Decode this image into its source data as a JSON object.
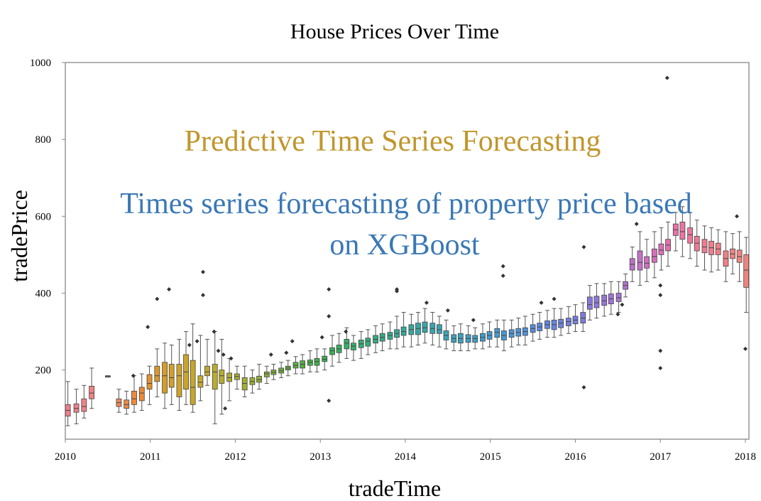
{
  "colors": {
    "overlay_title": "#c0962c",
    "overlay_subtitle": "#3a78b5",
    "frame": "#888888",
    "whisker": "#555555",
    "outlier": "#333333",
    "box_stroke": "#444444"
  },
  "chart_data": {
    "type": "box",
    "title": "House Prices Over Time",
    "xlabel": "tradeTime",
    "ylabel": "tradePrice",
    "xlim": [
      "2010-01",
      "2018-01"
    ],
    "ylim": [
      20,
      1000
    ],
    "yticks": [
      200,
      400,
      600,
      800,
      1000
    ],
    "xticks": [
      "2010",
      "2011",
      "2012",
      "2013",
      "2014",
      "2015",
      "2016",
      "2017",
      "2018"
    ],
    "grid": false,
    "overlay": {
      "headline": "Predictive Time Series Forecasting",
      "subline_1": "Times series forecasting of property price based",
      "subline_2": "on XGBoost"
    },
    "boxes": [
      {
        "t": 2010.03,
        "q1": 80,
        "med": 95,
        "q3": 110,
        "lo": 55,
        "hi": 170,
        "color": "#ee7f8a"
      },
      {
        "t": 2010.13,
        "q1": 90,
        "med": 100,
        "q3": 112,
        "lo": 60,
        "hi": 150,
        "color": "#ee7f8a"
      },
      {
        "t": 2010.22,
        "q1": 92,
        "med": 105,
        "q3": 125,
        "lo": 75,
        "hi": 160,
        "color": "#ee8288"
      },
      {
        "t": 2010.31,
        "q1": 125,
        "med": 140,
        "q3": 158,
        "lo": 100,
        "hi": 205,
        "color": "#ee8484"
      },
      {
        "t": 2010.5,
        "q1": 182,
        "med": 183,
        "q3": 185,
        "lo": 182,
        "hi": 185,
        "color": "#e98a6f"
      },
      {
        "t": 2010.63,
        "q1": 105,
        "med": 115,
        "q3": 125,
        "lo": 90,
        "hi": 150,
        "color": "#e98a5a"
      },
      {
        "t": 2010.72,
        "q1": 100,
        "med": 110,
        "q3": 122,
        "lo": 85,
        "hi": 145,
        "color": "#ec8a45"
      },
      {
        "t": 2010.81,
        "q1": 110,
        "med": 125,
        "q3": 145,
        "lo": 90,
        "hi": 185,
        "color": "#ec8a3c"
      },
      {
        "t": 2010.9,
        "q1": 120,
        "med": 140,
        "q3": 155,
        "lo": 95,
        "hi": 190,
        "color": "#ec8a38"
      },
      {
        "t": 2010.99,
        "q1": 150,
        "med": 165,
        "q3": 188,
        "lo": 110,
        "hi": 210,
        "color": "#e2922f"
      },
      {
        "t": 2011.08,
        "q1": 170,
        "med": 185,
        "q3": 210,
        "lo": 130,
        "hi": 255,
        "color": "#d99a2a"
      },
      {
        "t": 2011.17,
        "q1": 140,
        "med": 185,
        "q3": 220,
        "lo": 100,
        "hi": 270,
        "color": "#d69c2a"
      },
      {
        "t": 2011.25,
        "q1": 155,
        "med": 180,
        "q3": 215,
        "lo": 110,
        "hi": 265,
        "color": "#d19f2a"
      },
      {
        "t": 2011.34,
        "q1": 130,
        "med": 185,
        "q3": 215,
        "lo": 95,
        "hi": 280,
        "color": "#cfa22a"
      },
      {
        "t": 2011.42,
        "q1": 150,
        "med": 195,
        "q3": 240,
        "lo": 110,
        "hi": 300,
        "color": "#caa52a"
      },
      {
        "t": 2011.5,
        "q1": 110,
        "med": 155,
        "q3": 225,
        "lo": 90,
        "hi": 320,
        "color": "#c6a72b"
      },
      {
        "t": 2011.59,
        "q1": 155,
        "med": 168,
        "q3": 185,
        "lo": 120,
        "hi": 290,
        "color": "#c3a92c"
      },
      {
        "t": 2011.67,
        "q1": 185,
        "med": 195,
        "q3": 210,
        "lo": 160,
        "hi": 280,
        "color": "#bfaa2e"
      },
      {
        "t": 2011.76,
        "q1": 150,
        "med": 195,
        "q3": 215,
        "lo": 60,
        "hi": 300,
        "color": "#baad2f"
      },
      {
        "t": 2011.84,
        "q1": 165,
        "med": 185,
        "q3": 200,
        "lo": 85,
        "hi": 280,
        "color": "#b6ad30"
      },
      {
        "t": 2011.93,
        "q1": 170,
        "med": 180,
        "q3": 192,
        "lo": 120,
        "hi": 230,
        "color": "#b0ae31"
      },
      {
        "t": 2012.02,
        "q1": 175,
        "med": 183,
        "q3": 190,
        "lo": 150,
        "hi": 210,
        "color": "#a9ae33"
      },
      {
        "t": 2012.11,
        "q1": 148,
        "med": 165,
        "q3": 180,
        "lo": 130,
        "hi": 210,
        "color": "#a2ae34"
      },
      {
        "t": 2012.2,
        "q1": 162,
        "med": 170,
        "q3": 180,
        "lo": 140,
        "hi": 200,
        "color": "#9aae36"
      },
      {
        "t": 2012.28,
        "q1": 168,
        "med": 175,
        "q3": 184,
        "lo": 150,
        "hi": 215,
        "color": "#92ae38"
      },
      {
        "t": 2012.37,
        "q1": 182,
        "med": 190,
        "q3": 195,
        "lo": 165,
        "hi": 210,
        "color": "#88ae3a"
      },
      {
        "t": 2012.45,
        "q1": 188,
        "med": 194,
        "q3": 200,
        "lo": 175,
        "hi": 215,
        "color": "#7daf3c"
      },
      {
        "t": 2012.54,
        "q1": 192,
        "med": 198,
        "q3": 205,
        "lo": 180,
        "hi": 220,
        "color": "#72af3e"
      },
      {
        "t": 2012.62,
        "q1": 200,
        "med": 205,
        "q3": 210,
        "lo": 185,
        "hi": 225,
        "color": "#67b040"
      },
      {
        "t": 2012.71,
        "q1": 205,
        "med": 212,
        "q3": 220,
        "lo": 190,
        "hi": 235,
        "color": "#5cb042"
      },
      {
        "t": 2012.79,
        "q1": 205,
        "med": 215,
        "q3": 224,
        "lo": 190,
        "hi": 240,
        "color": "#52b045"
      },
      {
        "t": 2012.88,
        "q1": 212,
        "med": 220,
        "q3": 226,
        "lo": 195,
        "hi": 250,
        "color": "#49b048"
      },
      {
        "t": 2012.96,
        "q1": 212,
        "med": 222,
        "q3": 230,
        "lo": 195,
        "hi": 255,
        "color": "#42b04c"
      },
      {
        "t": 2013.05,
        "q1": 222,
        "med": 228,
        "q3": 236,
        "lo": 200,
        "hi": 255,
        "color": "#3db052"
      },
      {
        "t": 2013.14,
        "q1": 240,
        "med": 250,
        "q3": 258,
        "lo": 210,
        "hi": 290,
        "color": "#39b058"
      },
      {
        "t": 2013.22,
        "q1": 245,
        "med": 255,
        "q3": 265,
        "lo": 220,
        "hi": 295,
        "color": "#37b05f"
      },
      {
        "t": 2013.31,
        "q1": 255,
        "med": 270,
        "q3": 280,
        "lo": 230,
        "hi": 310,
        "color": "#36af66"
      },
      {
        "t": 2013.39,
        "q1": 252,
        "med": 262,
        "q3": 270,
        "lo": 225,
        "hi": 290,
        "color": "#35af6d"
      },
      {
        "t": 2013.48,
        "q1": 258,
        "med": 268,
        "q3": 278,
        "lo": 230,
        "hi": 300,
        "color": "#34ae74"
      },
      {
        "t": 2013.56,
        "q1": 262,
        "med": 275,
        "q3": 283,
        "lo": 240,
        "hi": 305,
        "color": "#34ad7b"
      },
      {
        "t": 2013.65,
        "q1": 270,
        "med": 280,
        "q3": 290,
        "lo": 245,
        "hi": 315,
        "color": "#34ac82"
      },
      {
        "t": 2013.73,
        "q1": 275,
        "med": 285,
        "q3": 295,
        "lo": 250,
        "hi": 320,
        "color": "#35ab88"
      },
      {
        "t": 2013.82,
        "q1": 280,
        "med": 290,
        "q3": 298,
        "lo": 255,
        "hi": 325,
        "color": "#35aa8e"
      },
      {
        "t": 2013.9,
        "q1": 285,
        "med": 295,
        "q3": 305,
        "lo": 255,
        "hi": 340,
        "color": "#36a994"
      },
      {
        "t": 2013.98,
        "q1": 290,
        "med": 300,
        "q3": 312,
        "lo": 260,
        "hi": 350,
        "color": "#37a89a"
      },
      {
        "t": 2014.07,
        "q1": 292,
        "med": 305,
        "q3": 318,
        "lo": 260,
        "hi": 345,
        "color": "#38a79f"
      },
      {
        "t": 2014.15,
        "q1": 292,
        "med": 308,
        "q3": 322,
        "lo": 265,
        "hi": 350,
        "color": "#39a6a4"
      },
      {
        "t": 2014.23,
        "q1": 298,
        "med": 310,
        "q3": 325,
        "lo": 270,
        "hi": 360,
        "color": "#3aa5a9"
      },
      {
        "t": 2014.32,
        "q1": 295,
        "med": 308,
        "q3": 322,
        "lo": 265,
        "hi": 350,
        "color": "#3ba4ae"
      },
      {
        "t": 2014.4,
        "q1": 295,
        "med": 305,
        "q3": 318,
        "lo": 260,
        "hi": 340,
        "color": "#3ca3b2"
      },
      {
        "t": 2014.48,
        "q1": 278,
        "med": 290,
        "q3": 302,
        "lo": 255,
        "hi": 330,
        "color": "#3da2b6"
      },
      {
        "t": 2014.57,
        "q1": 272,
        "med": 282,
        "q3": 292,
        "lo": 250,
        "hi": 315,
        "color": "#3ea1ba"
      },
      {
        "t": 2014.65,
        "q1": 270,
        "med": 282,
        "q3": 295,
        "lo": 250,
        "hi": 320,
        "color": "#3fa0be"
      },
      {
        "t": 2014.74,
        "q1": 272,
        "med": 282,
        "q3": 292,
        "lo": 250,
        "hi": 315,
        "color": "#409fc2"
      },
      {
        "t": 2014.82,
        "q1": 272,
        "med": 282,
        "q3": 290,
        "lo": 255,
        "hi": 310,
        "color": "#419ec6"
      },
      {
        "t": 2014.91,
        "q1": 275,
        "med": 285,
        "q3": 295,
        "lo": 255,
        "hi": 320,
        "color": "#429dca"
      },
      {
        "t": 2014.99,
        "q1": 280,
        "med": 290,
        "q3": 300,
        "lo": 260,
        "hi": 325,
        "color": "#449bcd"
      },
      {
        "t": 2015.08,
        "q1": 285,
        "med": 298,
        "q3": 308,
        "lo": 260,
        "hi": 330,
        "color": "#4699d0"
      },
      {
        "t": 2015.16,
        "q1": 278,
        "med": 290,
        "q3": 302,
        "lo": 250,
        "hi": 330,
        "color": "#4897d3"
      },
      {
        "t": 2015.25,
        "q1": 285,
        "med": 295,
        "q3": 305,
        "lo": 260,
        "hi": 330,
        "color": "#4b95d6"
      },
      {
        "t": 2015.33,
        "q1": 288,
        "med": 298,
        "q3": 308,
        "lo": 265,
        "hi": 335,
        "color": "#4e93d8"
      },
      {
        "t": 2015.41,
        "q1": 290,
        "med": 300,
        "q3": 310,
        "lo": 265,
        "hi": 340,
        "color": "#5291da"
      },
      {
        "t": 2015.5,
        "q1": 298,
        "med": 308,
        "q3": 318,
        "lo": 275,
        "hi": 345,
        "color": "#568edc"
      },
      {
        "t": 2015.58,
        "q1": 302,
        "med": 312,
        "q3": 322,
        "lo": 280,
        "hi": 350,
        "color": "#5b8bdd"
      },
      {
        "t": 2015.67,
        "q1": 308,
        "med": 318,
        "q3": 328,
        "lo": 285,
        "hi": 355,
        "color": "#6088de"
      },
      {
        "t": 2015.75,
        "q1": 305,
        "med": 318,
        "q3": 330,
        "lo": 285,
        "hi": 360,
        "color": "#6685de"
      },
      {
        "t": 2015.83,
        "q1": 310,
        "med": 322,
        "q3": 332,
        "lo": 290,
        "hi": 360,
        "color": "#6c82de"
      },
      {
        "t": 2015.92,
        "q1": 315,
        "med": 326,
        "q3": 335,
        "lo": 295,
        "hi": 365,
        "color": "#737fde"
      },
      {
        "t": 2016.0,
        "q1": 320,
        "med": 330,
        "q3": 340,
        "lo": 300,
        "hi": 370,
        "color": "#797cdd"
      },
      {
        "t": 2016.09,
        "q1": 322,
        "med": 335,
        "q3": 350,
        "lo": 300,
        "hi": 375,
        "color": "#807adc"
      },
      {
        "t": 2016.17,
        "q1": 358,
        "med": 370,
        "q3": 390,
        "lo": 330,
        "hi": 420,
        "color": "#8878db"
      },
      {
        "t": 2016.25,
        "q1": 362,
        "med": 375,
        "q3": 392,
        "lo": 335,
        "hi": 425,
        "color": "#9076d9"
      },
      {
        "t": 2016.34,
        "q1": 368,
        "med": 380,
        "q3": 395,
        "lo": 340,
        "hi": 425,
        "color": "#9875d7"
      },
      {
        "t": 2016.42,
        "q1": 372,
        "med": 385,
        "q3": 398,
        "lo": 345,
        "hi": 430,
        "color": "#a074d4"
      },
      {
        "t": 2016.51,
        "q1": 378,
        "med": 388,
        "q3": 400,
        "lo": 350,
        "hi": 430,
        "color": "#a873d1"
      },
      {
        "t": 2016.59,
        "q1": 410,
        "med": 420,
        "q3": 430,
        "lo": 390,
        "hi": 450,
        "color": "#b172cd"
      },
      {
        "t": 2016.67,
        "q1": 460,
        "med": 475,
        "q3": 490,
        "lo": 430,
        "hi": 520,
        "color": "#ba71c9"
      },
      {
        "t": 2016.76,
        "q1": 460,
        "med": 480,
        "q3": 510,
        "lo": 420,
        "hi": 560,
        "color": "#c370c4"
      },
      {
        "t": 2016.84,
        "q1": 465,
        "med": 478,
        "q3": 495,
        "lo": 430,
        "hi": 540,
        "color": "#cc70bf"
      },
      {
        "t": 2016.93,
        "q1": 480,
        "med": 495,
        "q3": 515,
        "lo": 440,
        "hi": 560,
        "color": "#d470ba"
      },
      {
        "t": 2017.01,
        "q1": 500,
        "med": 512,
        "q3": 528,
        "lo": 460,
        "hi": 570,
        "color": "#dc70b4"
      },
      {
        "t": 2017.09,
        "q1": 510,
        "med": 525,
        "q3": 540,
        "lo": 470,
        "hi": 585,
        "color": "#e271ae"
      },
      {
        "t": 2017.18,
        "q1": 550,
        "med": 565,
        "q3": 580,
        "lo": 510,
        "hi": 610,
        "color": "#e773a8"
      },
      {
        "t": 2017.26,
        "q1": 540,
        "med": 560,
        "q3": 585,
        "lo": 495,
        "hi": 625,
        "color": "#ea75a2"
      },
      {
        "t": 2017.35,
        "q1": 530,
        "med": 552,
        "q3": 570,
        "lo": 490,
        "hi": 610,
        "color": "#ec779c"
      },
      {
        "t": 2017.43,
        "q1": 510,
        "med": 530,
        "q3": 548,
        "lo": 470,
        "hi": 590,
        "color": "#ee7996"
      },
      {
        "t": 2017.52,
        "q1": 505,
        "med": 520,
        "q3": 540,
        "lo": 460,
        "hi": 575,
        "color": "#ef7b91"
      },
      {
        "t": 2017.6,
        "q1": 500,
        "med": 518,
        "q3": 535,
        "lo": 455,
        "hi": 570,
        "color": "#f07d8c"
      },
      {
        "t": 2017.68,
        "q1": 500,
        "med": 515,
        "q3": 530,
        "lo": 460,
        "hi": 565,
        "color": "#f07f88"
      },
      {
        "t": 2017.77,
        "q1": 470,
        "med": 490,
        "q3": 510,
        "lo": 430,
        "hi": 560,
        "color": "#f08184"
      },
      {
        "t": 2017.85,
        "q1": 490,
        "med": 502,
        "q3": 515,
        "lo": 450,
        "hi": 555,
        "color": "#ef8281"
      },
      {
        "t": 2017.93,
        "q1": 480,
        "med": 495,
        "q3": 512,
        "lo": 430,
        "hi": 560,
        "color": "#ef837f"
      },
      {
        "t": 2018.01,
        "q1": 415,
        "med": 460,
        "q3": 500,
        "lo": 350,
        "hi": 545,
        "color": "#ee847d"
      }
    ],
    "outliers": [
      {
        "t": 2010.8,
        "v": 185
      },
      {
        "t": 2010.97,
        "v": 312
      },
      {
        "t": 2011.08,
        "v": 385
      },
      {
        "t": 2011.22,
        "v": 410
      },
      {
        "t": 2011.46,
        "v": 265
      },
      {
        "t": 2011.55,
        "v": 275
      },
      {
        "t": 2011.62,
        "v": 455
      },
      {
        "t": 2011.62,
        "v": 395
      },
      {
        "t": 2011.75,
        "v": 300
      },
      {
        "t": 2011.8,
        "v": 250
      },
      {
        "t": 2011.86,
        "v": 240
      },
      {
        "t": 2011.88,
        "v": 100
      },
      {
        "t": 2011.95,
        "v": 230
      },
      {
        "t": 2012.42,
        "v": 240
      },
      {
        "t": 2012.6,
        "v": 245
      },
      {
        "t": 2012.67,
        "v": 275
      },
      {
        "t": 2013.02,
        "v": 285
      },
      {
        "t": 2013.1,
        "v": 410
      },
      {
        "t": 2013.1,
        "v": 340
      },
      {
        "t": 2013.1,
        "v": 120
      },
      {
        "t": 2013.3,
        "v": 300
      },
      {
        "t": 2013.9,
        "v": 410
      },
      {
        "t": 2013.9,
        "v": 405
      },
      {
        "t": 2014.25,
        "v": 375
      },
      {
        "t": 2014.5,
        "v": 355
      },
      {
        "t": 2014.8,
        "v": 330
      },
      {
        "t": 2015.15,
        "v": 470
      },
      {
        "t": 2015.15,
        "v": 445
      },
      {
        "t": 2015.6,
        "v": 375
      },
      {
        "t": 2015.75,
        "v": 385
      },
      {
        "t": 2016.1,
        "v": 520
      },
      {
        "t": 2016.1,
        "v": 155
      },
      {
        "t": 2016.5,
        "v": 345
      },
      {
        "t": 2016.55,
        "v": 370
      },
      {
        "t": 2016.72,
        "v": 580
      },
      {
        "t": 2017.0,
        "v": 420
      },
      {
        "t": 2017.0,
        "v": 395
      },
      {
        "t": 2017.0,
        "v": 250
      },
      {
        "t": 2017.0,
        "v": 205
      },
      {
        "t": 2017.08,
        "v": 960
      },
      {
        "t": 2017.9,
        "v": 600
      },
      {
        "t": 2018.0,
        "v": 255
      }
    ]
  }
}
